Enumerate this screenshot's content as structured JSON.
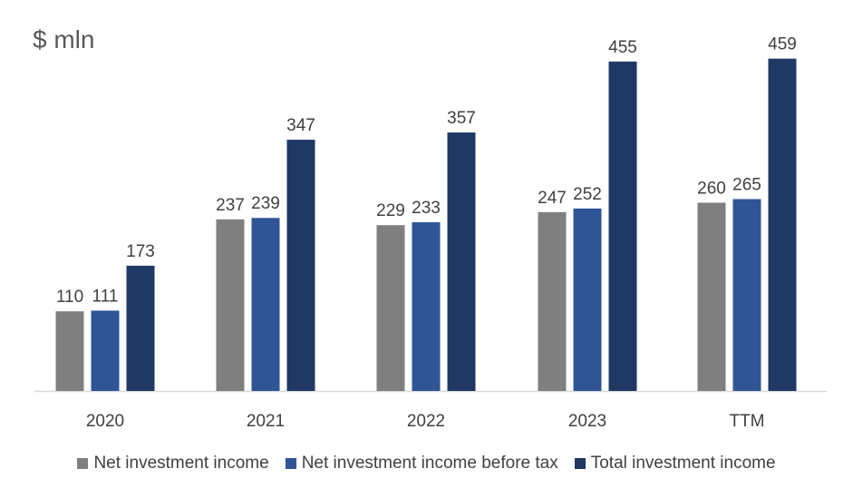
{
  "chart_data": {
    "type": "bar",
    "title": "$ mln",
    "xlabel": "",
    "ylabel": "$ mln",
    "ylim": [
      0,
      540
    ],
    "grid": false,
    "legend_position": "bottom",
    "categories": [
      "2020",
      "2021",
      "2022",
      "2023",
      "TTM"
    ],
    "series": [
      {
        "name": "Net investment income",
        "color": "#7f7f7f",
        "values": [
          110,
          237,
          229,
          247,
          260
        ]
      },
      {
        "name": "Net investment income before tax",
        "color": "#2f5597",
        "values": [
          111,
          239,
          233,
          252,
          265
        ]
      },
      {
        "name": "Total investment income",
        "color": "#1f3864",
        "values": [
          173,
          347,
          357,
          455,
          459
        ]
      }
    ]
  }
}
